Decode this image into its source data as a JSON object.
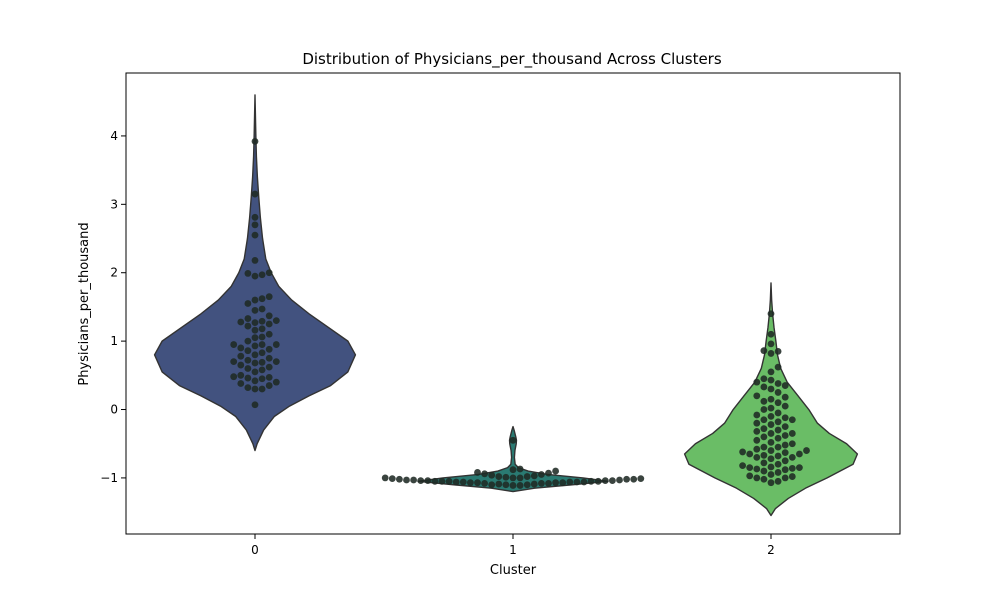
{
  "chart_data": {
    "type": "violin+swarm",
    "title": "Distribution of Physicians_per_thousand Across Clusters",
    "xlabel": "Cluster",
    "ylabel": "Physicians_per_thousand",
    "categories": [
      "0",
      "1",
      "2"
    ],
    "ylim": [
      -1.82,
      4.92
    ],
    "yticks": [
      -1,
      0,
      1,
      2,
      3,
      4
    ],
    "ytick_labels": [
      "−1",
      "0",
      "1",
      "2",
      "3",
      "4"
    ],
    "grid": false,
    "legend": "none",
    "colors": {
      "cluster_0": "#42527F",
      "cluster_1": "#2A7A72",
      "cluster_2": "#6ABD66",
      "outline": "#333333",
      "points": "#1F2A24"
    },
    "violins": [
      {
        "category": "0",
        "profile": [
          [
            -0.6,
            0.0
          ],
          [
            -0.5,
            0.02
          ],
          [
            -0.3,
            0.08
          ],
          [
            -0.1,
            0.18
          ],
          [
            0.05,
            0.32
          ],
          [
            0.2,
            0.5
          ],
          [
            0.35,
            0.7
          ],
          [
            0.55,
            0.86
          ],
          [
            0.8,
            0.93
          ],
          [
            1.0,
            0.86
          ],
          [
            1.2,
            0.68
          ],
          [
            1.4,
            0.5
          ],
          [
            1.6,
            0.34
          ],
          [
            1.8,
            0.22
          ],
          [
            2.0,
            0.15
          ],
          [
            2.2,
            0.1
          ],
          [
            2.5,
            0.07
          ],
          [
            2.8,
            0.05
          ],
          [
            3.1,
            0.035
          ],
          [
            3.4,
            0.022
          ],
          [
            3.7,
            0.013
          ],
          [
            4.0,
            0.008
          ],
          [
            4.3,
            0.004
          ],
          [
            4.6,
            0.0
          ]
        ]
      },
      {
        "category": "1",
        "profile": [
          [
            -1.2,
            0.0
          ],
          [
            -1.15,
            0.2
          ],
          [
            -1.1,
            0.55
          ],
          [
            -1.05,
            0.88
          ],
          [
            -1.0,
            0.65
          ],
          [
            -0.95,
            0.32
          ],
          [
            -0.9,
            0.14
          ],
          [
            -0.85,
            0.05
          ],
          [
            -0.8,
            0.02
          ],
          [
            -0.7,
            0.013
          ],
          [
            -0.6,
            0.018
          ],
          [
            -0.5,
            0.03
          ],
          [
            -0.45,
            0.032
          ],
          [
            -0.4,
            0.026
          ],
          [
            -0.3,
            0.01
          ],
          [
            -0.25,
            0.0
          ]
        ]
      },
      {
        "category": "2",
        "profile": [
          [
            -1.55,
            0.0
          ],
          [
            -1.45,
            0.04
          ],
          [
            -1.3,
            0.16
          ],
          [
            -1.15,
            0.32
          ],
          [
            -1.0,
            0.52
          ],
          [
            -0.8,
            0.76
          ],
          [
            -0.65,
            0.8
          ],
          [
            -0.5,
            0.7
          ],
          [
            -0.35,
            0.54
          ],
          [
            -0.2,
            0.43
          ],
          [
            0.0,
            0.35
          ],
          [
            0.2,
            0.25
          ],
          [
            0.4,
            0.15
          ],
          [
            0.6,
            0.09
          ],
          [
            0.8,
            0.06
          ],
          [
            1.0,
            0.045
          ],
          [
            1.2,
            0.028
          ],
          [
            1.4,
            0.015
          ],
          [
            1.6,
            0.006
          ],
          [
            1.85,
            0.0
          ]
        ]
      }
    ],
    "series": [
      {
        "category": "0",
        "values": [
          3.92,
          3.15,
          2.81,
          2.7,
          2.55,
          2.18,
          2.0,
          1.99,
          1.97,
          1.95,
          1.65,
          1.62,
          1.6,
          1.55,
          1.47,
          1.45,
          1.37,
          1.33,
          1.3,
          1.29,
          1.28,
          1.27,
          1.25,
          1.22,
          1.18,
          1.16,
          1.1,
          1.06,
          1.05,
          1.0,
          0.95,
          0.95,
          0.95,
          0.93,
          0.9,
          0.88,
          0.86,
          0.83,
          0.8,
          0.78,
          0.75,
          0.72,
          0.7,
          0.7,
          0.69,
          0.68,
          0.65,
          0.62,
          0.6,
          0.58,
          0.55,
          0.5,
          0.48,
          0.47,
          0.46,
          0.45,
          0.42,
          0.4,
          0.38,
          0.35,
          0.32,
          0.3,
          0.3,
          0.07
        ]
      },
      {
        "category": "1",
        "values": [
          -0.45,
          -0.87,
          -0.88,
          -0.9,
          -0.92,
          -0.93,
          -0.94,
          -0.95,
          -0.96,
          -0.97,
          -0.98,
          -0.98,
          -0.99,
          -1.0,
          -1.0,
          -1.0,
          -1.01,
          -1.01,
          -1.02,
          -1.02,
          -1.02,
          -1.03,
          -1.03,
          -1.03,
          -1.04,
          -1.04,
          -1.04,
          -1.04,
          -1.05,
          -1.05,
          -1.05,
          -1.05,
          -1.05,
          -1.06,
          -1.06,
          -1.06,
          -1.06,
          -1.06,
          -1.07,
          -1.07,
          -1.07,
          -1.07,
          -1.08,
          -1.08,
          -1.08,
          -1.09,
          -1.09,
          -1.1,
          -1.1,
          -1.1,
          -1.11,
          -1.11
        ]
      },
      {
        "category": "2",
        "values": [
          1.4,
          1.1,
          0.96,
          0.86,
          0.85,
          0.82,
          0.62,
          0.55,
          0.45,
          0.43,
          0.4,
          0.38,
          0.35,
          0.33,
          0.3,
          0.25,
          0.2,
          0.18,
          0.15,
          0.12,
          0.1,
          0.05,
          0.02,
          0.0,
          -0.05,
          -0.08,
          -0.1,
          -0.12,
          -0.15,
          -0.15,
          -0.18,
          -0.2,
          -0.22,
          -0.25,
          -0.28,
          -0.3,
          -0.32,
          -0.35,
          -0.35,
          -0.38,
          -0.4,
          -0.42,
          -0.45,
          -0.48,
          -0.5,
          -0.52,
          -0.55,
          -0.55,
          -0.58,
          -0.6,
          -0.6,
          -0.62,
          -0.63,
          -0.65,
          -0.65,
          -0.67,
          -0.68,
          -0.7,
          -0.7,
          -0.72,
          -0.75,
          -0.78,
          -0.8,
          -0.82,
          -0.84,
          -0.85,
          -0.85,
          -0.86,
          -0.87,
          -0.88,
          -0.9,
          -0.92,
          -0.95,
          -0.97,
          -0.98,
          -1.0,
          -1.0,
          -1.02,
          -1.05,
          -1.07
        ]
      }
    ]
  }
}
